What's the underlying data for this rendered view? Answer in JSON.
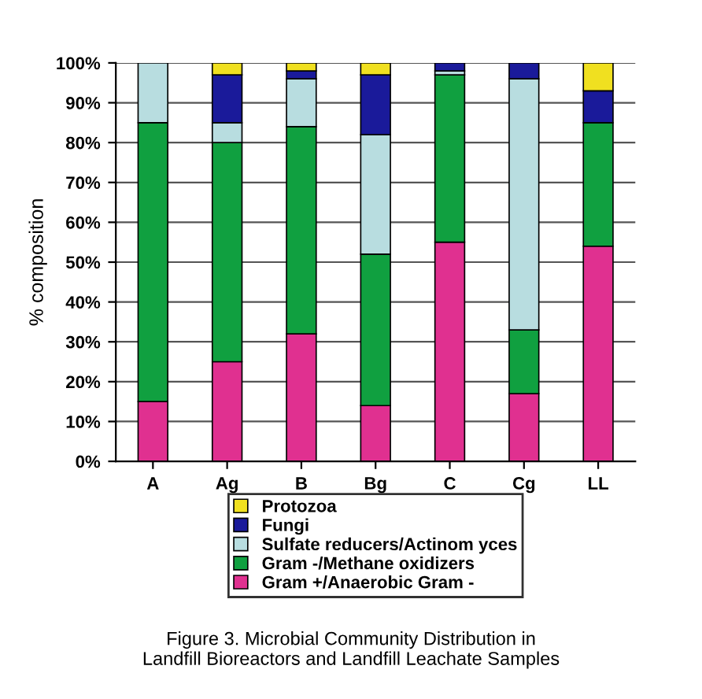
{
  "chart_data": {
    "type": "bar",
    "stacked": true,
    "ylabel": "% composition",
    "categories": [
      "A",
      "Ag",
      "B",
      "Bg",
      "C",
      "Cg",
      "LL"
    ],
    "series": [
      {
        "name": "Gram +/Anaerobic Gram -",
        "color": "#e03090",
        "values": [
          15,
          25,
          32,
          14,
          55,
          17,
          54
        ]
      },
      {
        "name": "Gram -/Methane oxidizers",
        "color": "#10a040",
        "values": [
          70,
          55,
          52,
          38,
          42,
          16,
          31
        ]
      },
      {
        "name": "Sulfate reducers/Actinom yces",
        "color": "#b8dde0",
        "values": [
          15,
          5,
          12,
          30,
          1,
          63,
          0
        ]
      },
      {
        "name": "Fungi",
        "color": "#1a1a9a",
        "values": [
          0,
          12,
          2,
          15,
          2,
          4,
          8
        ]
      },
      {
        "name": "Protozoa",
        "color": "#f0e020",
        "values": [
          0,
          3,
          2,
          3,
          0,
          0,
          7
        ]
      }
    ],
    "ylim": [
      0,
      100
    ],
    "yticks": [
      {
        "value": 0,
        "label": "0%"
      },
      {
        "value": 10,
        "label": "10%"
      },
      {
        "value": 20,
        "label": "20%"
      },
      {
        "value": 30,
        "label": "30%"
      },
      {
        "value": 40,
        "label": "40%"
      },
      {
        "value": 50,
        "label": "50%"
      },
      {
        "value": 60,
        "label": "60%"
      },
      {
        "value": 70,
        "label": "70%"
      },
      {
        "value": 80,
        "label": "80%"
      },
      {
        "value": 90,
        "label": "90%"
      },
      {
        "value": 100,
        "label": "100%"
      }
    ],
    "grid": "y",
    "legend": "bottom",
    "annotations": [
      "Figure 3. Microbial Community Distribution in\nLandfill Bioreactors and Landfill Leachate Samples"
    ]
  }
}
